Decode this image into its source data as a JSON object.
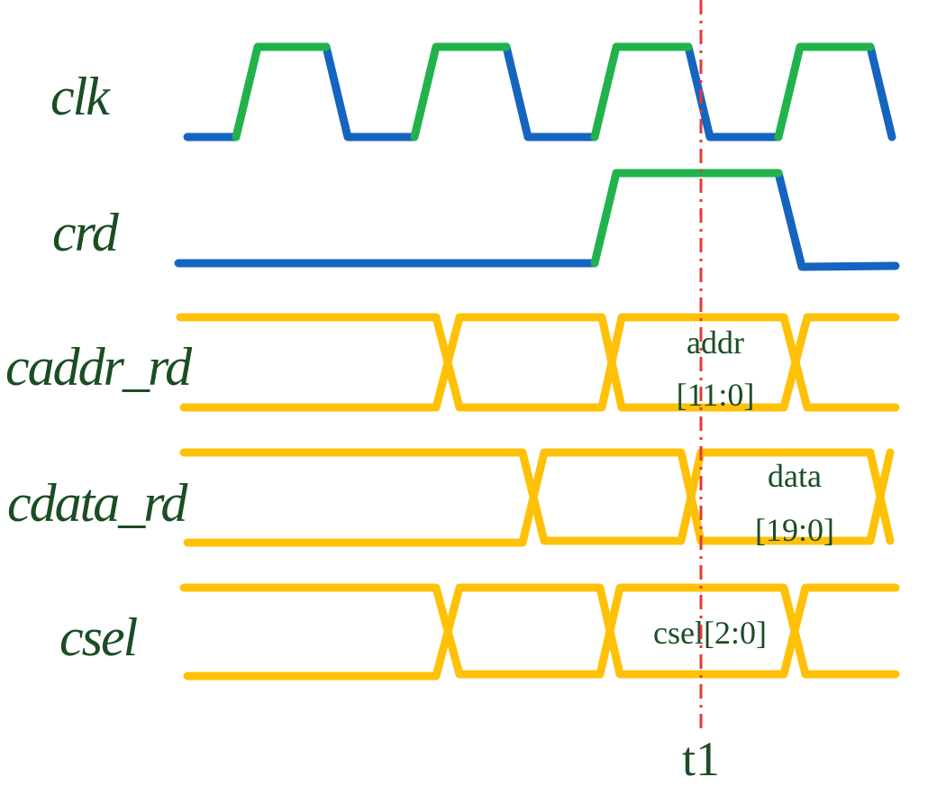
{
  "signals": [
    {
      "id": "clk",
      "label": "clk"
    },
    {
      "id": "crd",
      "label": "crd"
    },
    {
      "id": "caddr_rd",
      "label": "caddr_rd"
    },
    {
      "id": "cdata_rd",
      "label": "cdata_rd"
    },
    {
      "id": "csel",
      "label": "csel"
    }
  ],
  "bus_values": {
    "caddr_line1": "addr",
    "caddr_line2": "[11:0]",
    "cdata_line1": "data",
    "cdata_line2": "[19:0]",
    "csel": "csel[2:0]"
  },
  "marker": {
    "label": "t1"
  },
  "colors": {
    "label_text": "#1b4d24",
    "low_level": "#1565c0",
    "high_level": "#22b24c",
    "bus": "#ffc107",
    "marker_line": "#e53935"
  }
}
